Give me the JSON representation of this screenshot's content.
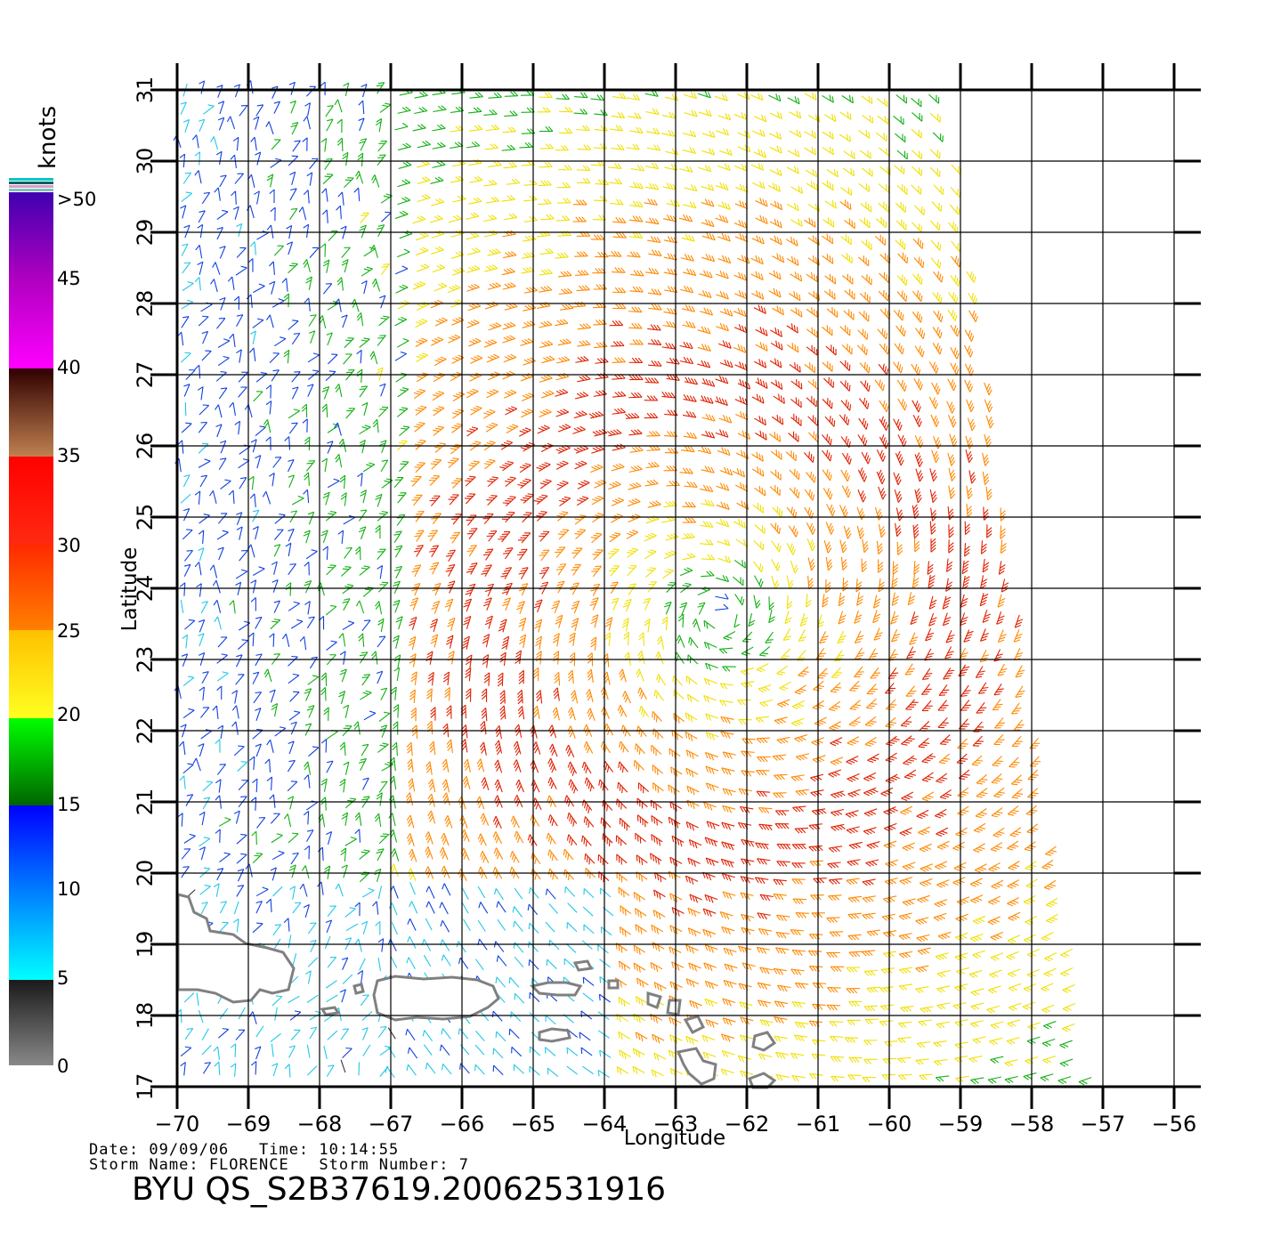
{
  "map": {
    "x_ticks": [
      "−70",
      "−69",
      "−68",
      "−67",
      "−66",
      "−65",
      "−64",
      "−63",
      "−62",
      "−61",
      "−60",
      "−59",
      "−58",
      "−57",
      "−56"
    ],
    "y_ticks": [
      "17",
      "18",
      "19",
      "20",
      "21",
      "22",
      "23",
      "24",
      "25",
      "26",
      "27",
      "28",
      "29",
      "30",
      "31"
    ],
    "xlabel": "Longitude",
    "ylabel": "Latitude",
    "lon_range": [
      -70,
      -56
    ],
    "lat_range": [
      17,
      31
    ],
    "storm_center": {
      "lon": -62.4,
      "lat": 23.6
    },
    "land_color": "#808080",
    "grid_color": "#000000"
  },
  "legend": {
    "unit": "knots",
    "labels": [
      ">50",
      "45",
      "40",
      "35",
      "30",
      "25",
      "20",
      "15",
      "10",
      "5",
      "0"
    ],
    "colors": {
      "0-5": [
        "#808080",
        "#1a1a1a"
      ],
      "5-10": [
        "#00ffff",
        "#0080ff"
      ],
      "10-15": [
        "#0080ff",
        "#0000ff"
      ],
      "15-20": [
        "#006400",
        "#00ff00"
      ],
      "20-25": [
        "#ffff00",
        "#ffc000"
      ],
      "25-30": [
        "#ff8000",
        "#ff2000"
      ],
      "30-35": [
        "#ff2000",
        "#ff0000"
      ],
      "35-40": [
        "#c08050",
        "#300000"
      ],
      "40-45": [
        "#ff00ff",
        "#b000c0"
      ],
      "45-50": [
        "#b000c0",
        "#4000b0"
      ]
    }
  },
  "footer": {
    "date_line": "Date: 09/09/06   Time: 10:14:55",
    "storm_line": "Storm Name: FLORENCE   Storm Number: 7",
    "product_id": "BYU QS_S2B37619.20062531916"
  }
}
